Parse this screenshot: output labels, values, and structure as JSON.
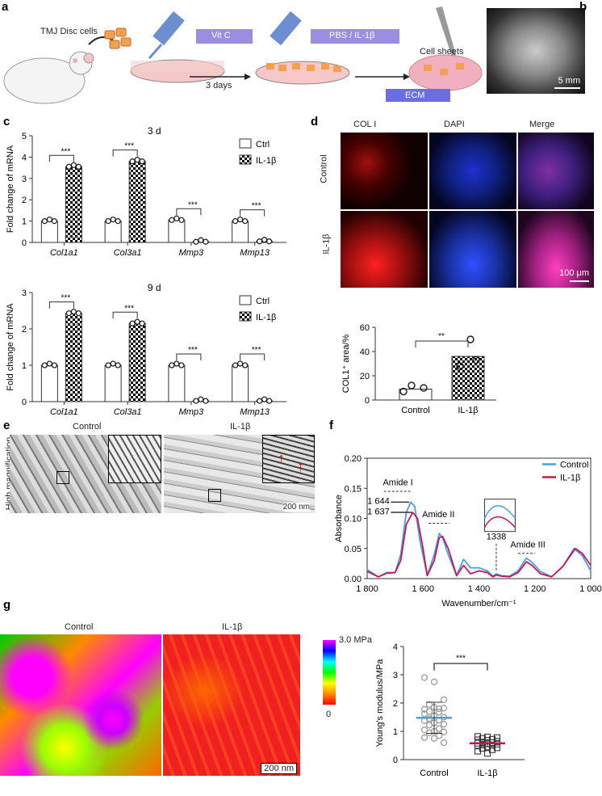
{
  "panels": {
    "a": "a",
    "b": "b",
    "c": "c",
    "d": "d",
    "e": "e",
    "f": "f",
    "g": "g"
  },
  "a": {
    "cells": "TMJ Disc cells",
    "vitc": "Vit C",
    "days": "3 days",
    "treat": "PBS / IL-1β",
    "sheets": "Cell sheets",
    "ecm": "ECM"
  },
  "b": {
    "scale": "5 mm"
  },
  "d_images": {
    "cols": [
      "COL I",
      "DAPI",
      "Merge"
    ],
    "rows": [
      "Control",
      "IL-1β"
    ],
    "scale": "100 μm",
    "col_colors": [
      "#e02020",
      "#2040e0",
      "#222222"
    ]
  },
  "e": {
    "cols": [
      "Control",
      "IL-1β"
    ],
    "row": "High magnification",
    "scale": "200 nm"
  },
  "g_images": {
    "cols": [
      "Control",
      "IL-1β"
    ],
    "cbar_max": "3.0 MPa",
    "cbar_min": "0",
    "scale": "200 nm"
  },
  "chart_data": [
    {
      "id": "c3d",
      "type": "bar",
      "title": "3 d",
      "ylabel": "Fold change of mRNA",
      "ylim": [
        0,
        5
      ],
      "yticks": [
        "0",
        "1",
        "2",
        "3",
        "4",
        "5"
      ],
      "categories": [
        "Col1a1",
        "Col3a1",
        "Mmp3",
        "Mmp13"
      ],
      "series": [
        {
          "name": "Ctrl",
          "values": [
            1.0,
            1.0,
            1.05,
            1.0
          ]
        },
        {
          "name": "IL-1β",
          "values": [
            3.55,
            3.8,
            0.03,
            0.05
          ]
        }
      ],
      "significance": [
        "***",
        "***",
        "***",
        "***"
      ]
    },
    {
      "id": "c9d",
      "type": "bar",
      "title": "9 d",
      "ylabel": "Fold change of mRNA",
      "ylim": [
        0,
        3
      ],
      "yticks": [
        "0",
        "1",
        "2",
        "3"
      ],
      "categories": [
        "Col1a1",
        "Col3a1",
        "Mmp3",
        "Mmp13"
      ],
      "series": [
        {
          "name": "Ctrl",
          "values": [
            1.0,
            1.0,
            1.0,
            1.0
          ]
        },
        {
          "name": "IL-1β",
          "values": [
            2.43,
            2.15,
            0.02,
            0.02
          ]
        }
      ],
      "significance": [
        "***",
        "***",
        "***",
        "***"
      ]
    },
    {
      "id": "d",
      "type": "bar",
      "ylabel": "COL1⁺ area/%",
      "ylim": [
        0,
        60
      ],
      "yticks": [
        "0",
        "20",
        "40",
        "60"
      ],
      "categories": [
        "Control",
        "IL-1β"
      ],
      "values": [
        9,
        36
      ],
      "significance": "**"
    },
    {
      "id": "f",
      "type": "line",
      "xlabel": "Wavenumber/cm⁻¹",
      "ylabel": "Absorbance",
      "xlim": [
        1800,
        1000
      ],
      "ylim": [
        0,
        0.2
      ],
      "xticks": [
        "1 800",
        "1 600",
        "1 400",
        "1 200",
        "1 000"
      ],
      "yticks": [
        "0.00",
        "0.05",
        "0.10",
        "0.15",
        "0.20"
      ],
      "annotations": [
        "Amide I",
        "Amide II",
        "Amide III",
        "1 644",
        "1 637",
        "1338"
      ],
      "series": [
        {
          "name": "Control",
          "color": "#4a9fe0",
          "x": [
            1800,
            1760,
            1730,
            1700,
            1680,
            1660,
            1644,
            1630,
            1610,
            1585,
            1560,
            1542,
            1530,
            1510,
            1480,
            1455,
            1430,
            1400,
            1370,
            1350,
            1338,
            1320,
            1290,
            1260,
            1230,
            1210,
            1180,
            1140,
            1100,
            1060,
            1030,
            1000
          ],
          "y": [
            0.015,
            0.003,
            0.01,
            0.01,
            0.04,
            0.11,
            0.127,
            0.12,
            0.06,
            0.005,
            0.04,
            0.075,
            0.068,
            0.04,
            0.005,
            0.032,
            0.018,
            0.018,
            0.013,
            0.004,
            0.008,
            0.005,
            0.004,
            0.013,
            0.034,
            0.027,
            0.012,
            0.003,
            0.02,
            0.05,
            0.038,
            0.013
          ]
        },
        {
          "name": "IL-1β",
          "color": "#c8145a",
          "x": [
            1800,
            1760,
            1730,
            1700,
            1680,
            1660,
            1637,
            1620,
            1600,
            1585,
            1560,
            1542,
            1530,
            1510,
            1480,
            1455,
            1430,
            1400,
            1370,
            1350,
            1338,
            1320,
            1290,
            1260,
            1230,
            1210,
            1180,
            1140,
            1100,
            1055,
            1030,
            1000
          ],
          "y": [
            0.012,
            0.003,
            0.009,
            0.01,
            0.03,
            0.09,
            0.11,
            0.1,
            0.05,
            0.005,
            0.03,
            0.068,
            0.07,
            0.05,
            0.005,
            0.022,
            0.008,
            0.013,
            0.01,
            0.003,
            0.006,
            0.004,
            0.003,
            0.01,
            0.028,
            0.022,
            0.008,
            0.003,
            0.02,
            0.05,
            0.042,
            0.022
          ]
        }
      ]
    },
    {
      "id": "g",
      "type": "scatter",
      "ylabel": "Young's modulus/MPa",
      "ylim": [
        0,
        4
      ],
      "yticks": [
        "0",
        "1",
        "2",
        "3",
        "4"
      ],
      "categories": [
        "Control",
        "IL-1β"
      ],
      "significance": "***",
      "series": [
        {
          "name": "Control",
          "mean": 1.48,
          "sd": 0.55,
          "color": "#4a9fe0",
          "values": [
            2.9,
            2.75,
            2.12,
            1.95,
            1.8,
            1.78,
            1.85,
            1.82,
            1.7,
            1.68,
            1.62,
            1.55,
            1.5,
            1.45,
            1.4,
            1.38,
            1.3,
            1.25,
            1.22,
            1.1,
            1.05,
            1.0,
            0.98,
            0.95,
            0.85,
            0.78,
            0.75,
            0.6
          ]
        },
        {
          "name": "IL-1β",
          "mean": 0.58,
          "sd": 0.12,
          "color": "#c8145a",
          "values": [
            0.82,
            0.8,
            0.78,
            0.75,
            0.72,
            0.7,
            0.68,
            0.65,
            0.62,
            0.6,
            0.58,
            0.56,
            0.55,
            0.52,
            0.5,
            0.48,
            0.45,
            0.42,
            0.4,
            0.35,
            0.3,
            0.22
          ]
        }
      ]
    }
  ]
}
